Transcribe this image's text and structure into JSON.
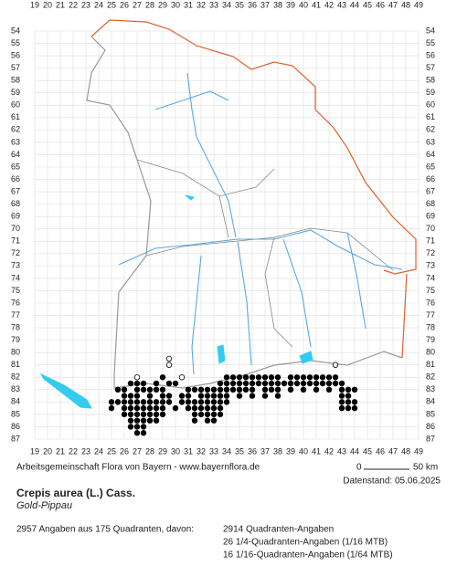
{
  "map": {
    "columns": [
      19,
      20,
      21,
      22,
      23,
      24,
      25,
      26,
      27,
      28,
      29,
      30,
      31,
      32,
      33,
      34,
      35,
      36,
      37,
      38,
      39,
      40,
      41,
      42,
      43,
      44,
      45,
      46,
      47,
      48,
      49
    ],
    "rows": [
      54,
      55,
      56,
      57,
      58,
      59,
      60,
      61,
      62,
      63,
      64,
      65,
      66,
      67,
      68,
      69,
      70,
      71,
      72,
      73,
      74,
      75,
      76,
      77,
      78,
      79,
      80,
      81,
      82,
      83,
      84,
      85,
      86,
      87
    ],
    "filled_dots": [
      {
        "row": 82,
        "cols": [
          29,
          34,
          34.5,
          35,
          35.5,
          36,
          36.5,
          37,
          37.5,
          38,
          39,
          39.5,
          40,
          40.5,
          41,
          41.5,
          42,
          42.5
        ]
      },
      {
        "row": 82.5,
        "cols": [
          26.5,
          27,
          27.5,
          28.5,
          29.5,
          30,
          33.5,
          34,
          34.5,
          35,
          35.5,
          36,
          36.5,
          37,
          37.5,
          38,
          38.5,
          39,
          39.5,
          40,
          40.5,
          41,
          41.5,
          42,
          42.5,
          43
        ]
      },
      {
        "row": 83,
        "cols": [
          25.5,
          26,
          27,
          27.5,
          28,
          28.5,
          29,
          31,
          31.5,
          32,
          32.5,
          33,
          33.5,
          34,
          34.5,
          35,
          35.5,
          36,
          37,
          37.5,
          38,
          39,
          40,
          41,
          42,
          43,
          43.5,
          44
        ]
      },
      {
        "row": 83.5,
        "cols": [
          26,
          26.5,
          27,
          28,
          29,
          29.5,
          30.5,
          31,
          32,
          32.5,
          33,
          33.5,
          34,
          35,
          36,
          37,
          38,
          43,
          43.5
        ]
      },
      {
        "row": 84,
        "cols": [
          25,
          25.5,
          26,
          26.5,
          27,
          27.5,
          28,
          28.5,
          29,
          29.5,
          30.5,
          31,
          31.5,
          32,
          32.5,
          33,
          33.5,
          34,
          43,
          43.5,
          44
        ]
      },
      {
        "row": 84.5,
        "cols": [
          25,
          26,
          26.5,
          27,
          27.5,
          28,
          28.5,
          29,
          30,
          31,
          31.5,
          32,
          32.5,
          33,
          33.5,
          43,
          43.5,
          44
        ]
      },
      {
        "row": 85,
        "cols": [
          26,
          26.5,
          27,
          27.5,
          28,
          28.5,
          29,
          31.5,
          32,
          32.5,
          33,
          33.5
        ]
      },
      {
        "row": 85.5,
        "cols": [
          26.5,
          27,
          27.5,
          28,
          28.5,
          31.5,
          32.5,
          33
        ]
      },
      {
        "row": 86,
        "cols": [
          26.5,
          27,
          27.5
        ]
      },
      {
        "row": 86.5,
        "cols": [
          27,
          27.5
        ]
      }
    ],
    "open_dots": [
      {
        "row": 80.5,
        "cols": [
          29.5
        ]
      },
      {
        "row": 81,
        "cols": [
          29.5,
          42.5
        ]
      },
      {
        "row": 82,
        "cols": [
          27,
          30.5
        ]
      }
    ]
  },
  "footer": {
    "credit": "Arbeitsgemeinschaft Flora von Bayern - www.bayernflora.de",
    "scale_start": "0",
    "scale_end": "50 km",
    "date": "Datenstand: 05.06.2025",
    "title": "Crepis aurea (L.) Cass.",
    "subtitle": "Gold-Pippau",
    "summary": "2957 Angaben aus 175 Quadranten, davon:",
    "detail_1": "2914 Quadranten-Angaben",
    "detail_2": "26 1/4-Quadranten-Angaben (1/16 MTB)",
    "detail_3": "16 1/16-Quadranten-Angaben (1/64 MTB)"
  }
}
